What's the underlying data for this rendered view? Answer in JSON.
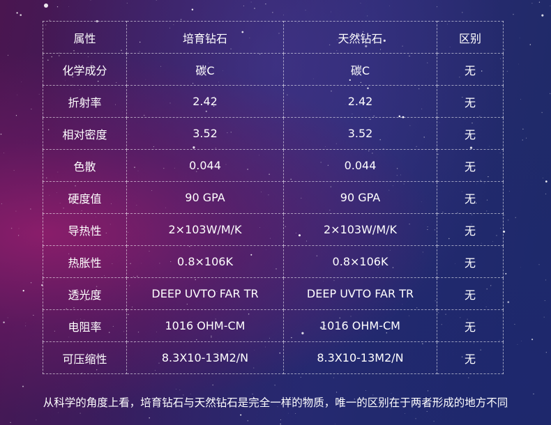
{
  "table": {
    "headers": [
      "属性",
      "培育钻石",
      "天然钻石",
      "区别"
    ],
    "rows": [
      [
        "化学成分",
        "碳C",
        "碳C",
        "无"
      ],
      [
        "折射率",
        "2.42",
        "2.42",
        "无"
      ],
      [
        "相对密度",
        "3.52",
        "3.52",
        "无"
      ],
      [
        "色散",
        "0.044",
        "0.044",
        "无"
      ],
      [
        "硬度值",
        "90 GPA",
        "90 GPA",
        "无"
      ],
      [
        "导热性",
        "2×103W/M/K",
        "2×103W/M/K",
        "无"
      ],
      [
        "热胀性",
        "0.8×106K",
        "0.8×106K",
        "无"
      ],
      [
        "透光度",
        "DEEP UVTO FAR TR",
        "DEEP UVTO FAR TR",
        "无"
      ],
      [
        "电阻率",
        "1016 OHM-CM",
        "1016 OHM-CM",
        "无"
      ],
      [
        "可压缩性",
        "8.3X10-13M2/N",
        "8.3X10-13M2/N",
        "无"
      ]
    ]
  },
  "caption": "从科学的角度上看，培育钻石与天然钻石是完全一样的物质，唯一的区别在于两者形成的地方不同",
  "colors": {
    "background_left": "#4a1650",
    "background_right": "#1c2a66",
    "text": "#ffffff"
  }
}
